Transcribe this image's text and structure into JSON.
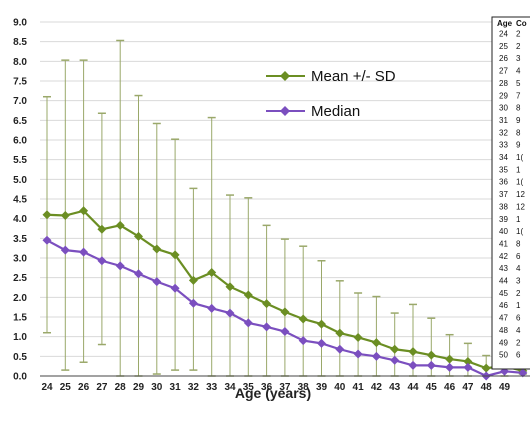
{
  "chart_data": {
    "type": "line",
    "title": "",
    "xlabel": "Age (years)",
    "ylabel": "",
    "ylim": [
      0,
      9
    ],
    "y_ticks": [
      "0.0",
      "0.5",
      "1.0",
      "1.5",
      "2.0",
      "2.5",
      "3.0",
      "3.5",
      "4.0",
      "4.5",
      "5.0",
      "5.5",
      "6.0",
      "6.5",
      "7.0",
      "7.5",
      "8.0",
      "8.5",
      "9.0"
    ],
    "categories": [
      "24",
      "25",
      "26",
      "27",
      "28",
      "29",
      "30",
      "31",
      "32",
      "33",
      "34",
      "35",
      "36",
      "37",
      "38",
      "39",
      "40",
      "41",
      "42",
      "43",
      "44",
      "45",
      "46",
      "47",
      "48",
      "49",
      "50"
    ],
    "x_tick_labels": [
      "24",
      "25",
      "26",
      "27",
      "28",
      "29",
      "30",
      "31",
      "32",
      "33",
      "34",
      "35",
      "36",
      "37",
      "38",
      "39",
      "40",
      "41",
      "42",
      "43",
      "44",
      "45",
      "46",
      "47",
      "48",
      "49"
    ],
    "grid": true,
    "legend_position": "upper-middle",
    "series": [
      {
        "name": "Mean +/- SD",
        "color": "#6b8e23",
        "marker": "diamond",
        "values": [
          4.1,
          4.08,
          4.2,
          3.73,
          3.83,
          3.55,
          3.23,
          3.08,
          2.43,
          2.63,
          2.27,
          2.06,
          1.84,
          1.63,
          1.45,
          1.32,
          1.09,
          0.98,
          0.85,
          0.68,
          0.62,
          0.53,
          0.43,
          0.37,
          0.2,
          0.25,
          0.13
        ],
        "upper": [
          7.1,
          8.03,
          8.03,
          6.68,
          8.53,
          7.13,
          6.42,
          6.02,
          4.77,
          6.57,
          4.6,
          4.53,
          3.83,
          3.48,
          3.3,
          2.93,
          2.42,
          2.11,
          2.02,
          1.6,
          1.82,
          1.47,
          1.05,
          0.83,
          0.52,
          0.28,
          0.2
        ],
        "lower": [
          1.1,
          0.15,
          0.35,
          0.8,
          0.0,
          0.0,
          0.05,
          0.15,
          0.15,
          0.0,
          0.0,
          0.0,
          0.0,
          0.0,
          0.0,
          0.0,
          0.0,
          0.0,
          0.0,
          0.0,
          0.0,
          0.0,
          0.0,
          0.0,
          0.0,
          0.0,
          0.05
        ]
      },
      {
        "name": "Median",
        "color": "#7b4fbf",
        "marker": "diamond",
        "values": [
          3.45,
          3.2,
          3.15,
          2.93,
          2.8,
          2.6,
          2.4,
          2.23,
          1.85,
          1.72,
          1.6,
          1.35,
          1.25,
          1.13,
          0.9,
          0.83,
          0.68,
          0.56,
          0.5,
          0.4,
          0.27,
          0.27,
          0.22,
          0.22,
          0.0,
          0.12,
          0.08
        ]
      }
    ],
    "side_table": {
      "header": [
        "Age",
        "Co"
      ],
      "ages": [
        "24",
        "25",
        "26",
        "27",
        "28",
        "29",
        "30",
        "31",
        "32",
        "33",
        "34",
        "35",
        "36",
        "37",
        "38",
        "39",
        "40",
        "41",
        "42",
        "43",
        "44",
        "45",
        "46",
        "47",
        "48",
        "49",
        "50"
      ],
      "second_column": [
        "2",
        "2",
        "3",
        "4",
        "5",
        "7",
        "8",
        "9",
        "8",
        "9",
        "1(",
        "1",
        "1(",
        "12",
        "12",
        "1",
        "1(",
        "8",
        "6",
        "4",
        "3",
        "2",
        "1",
        "6",
        "4",
        "2",
        "6"
      ]
    }
  }
}
